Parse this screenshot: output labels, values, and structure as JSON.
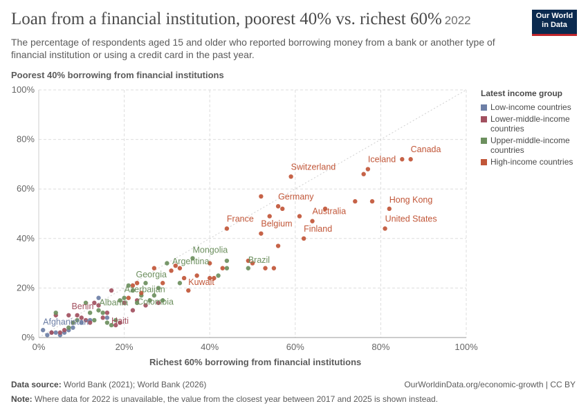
{
  "header": {
    "title": "Loan from a financial institution, poorest 40% vs. richest 60%",
    "year": "2022",
    "subtitle": "The percentage of respondents aged 15 and older who reported borrowing money from a bank or another type of financial institution or using a credit card in the past year.",
    "logo_line1": "Our World",
    "logo_line2": "in Data"
  },
  "footer": {
    "source_label": "Data source:",
    "source_text": "World Bank (2021); World Bank (2026)",
    "url": "OurWorldinData.org/economic-growth | CC BY",
    "note_label": "Note:",
    "note_text": "Where data for 2022 is unavailable, the value from the closest year between 2017 and 2025 is shown instead."
  },
  "chart_data": {
    "type": "scatter",
    "ylabel": "Poorest 40% borrowing from financial institutions",
    "xlabel": "Richest 60% borrowing from financial institutions",
    "xlim": [
      0,
      100
    ],
    "ylim": [
      0,
      100
    ],
    "xticks": [
      "0%",
      "20%",
      "40%",
      "60%",
      "80%",
      "100%"
    ],
    "yticks": [
      "0%",
      "20%",
      "40%",
      "60%",
      "80%",
      "100%"
    ],
    "grid": true,
    "legend": {
      "title": "Latest income group",
      "position": "right",
      "items": [
        {
          "name": "Low-income countries",
          "color": "#6d7fa6"
        },
        {
          "name": "Lower-middle-income countries",
          "color": "#a2505f"
        },
        {
          "name": "Upper-middle-income countries",
          "color": "#6c8f5e"
        },
        {
          "name": "High-income countries",
          "color": "#c15638"
        }
      ]
    },
    "series": [
      {
        "name": "Low-income countries",
        "color": "#6d7fa6",
        "points": [
          [
            1,
            3
          ],
          [
            2,
            1
          ],
          [
            3,
            2
          ],
          [
            4,
            2
          ],
          [
            5,
            1
          ],
          [
            6,
            2
          ],
          [
            7,
            3
          ],
          [
            8,
            4
          ],
          [
            10,
            6
          ],
          [
            12,
            7
          ],
          [
            14,
            16
          ],
          [
            16,
            8
          ]
        ]
      },
      {
        "name": "Lower-middle-income countries",
        "color": "#a2505f",
        "points": [
          [
            3,
            2
          ],
          [
            4,
            9
          ],
          [
            5,
            2
          ],
          [
            6,
            3
          ],
          [
            7,
            9
          ],
          [
            8,
            6
          ],
          [
            9,
            9
          ],
          [
            10,
            8
          ],
          [
            11,
            7
          ],
          [
            12,
            6
          ],
          [
            13,
            14
          ],
          [
            14,
            13
          ],
          [
            15,
            8
          ],
          [
            16,
            10
          ],
          [
            17,
            19
          ],
          [
            18,
            5
          ],
          [
            19,
            6
          ],
          [
            20,
            14
          ],
          [
            22,
            11
          ],
          [
            23,
            15
          ],
          [
            25,
            13
          ],
          [
            28,
            14
          ]
        ]
      },
      {
        "name": "Upper-middle-income countries",
        "color": "#6c8f5e",
        "points": [
          [
            4,
            10
          ],
          [
            7,
            4
          ],
          [
            8,
            6
          ],
          [
            9,
            7
          ],
          [
            11,
            14
          ],
          [
            12,
            10
          ],
          [
            13,
            7
          ],
          [
            14,
            11
          ],
          [
            15,
            10
          ],
          [
            16,
            6
          ],
          [
            17,
            5
          ],
          [
            18,
            7
          ],
          [
            19,
            15
          ],
          [
            20,
            16
          ],
          [
            21,
            21
          ],
          [
            22,
            19
          ],
          [
            23,
            14
          ],
          [
            24,
            17
          ],
          [
            25,
            22
          ],
          [
            26,
            15
          ],
          [
            27,
            17
          ],
          [
            28,
            20
          ],
          [
            29,
            15
          ],
          [
            30,
            30
          ],
          [
            33,
            22
          ],
          [
            36,
            32
          ],
          [
            42,
            25
          ],
          [
            44,
            28
          ],
          [
            44,
            31
          ],
          [
            49,
            28
          ]
        ]
      },
      {
        "name": "High-income countries",
        "color": "#c15638",
        "points": [
          [
            21,
            16
          ],
          [
            22,
            21
          ],
          [
            23,
            22
          ],
          [
            24,
            18
          ],
          [
            27,
            28
          ],
          [
            29,
            22
          ],
          [
            31,
            27
          ],
          [
            32,
            29
          ],
          [
            33,
            28
          ],
          [
            34,
            24
          ],
          [
            35,
            19
          ],
          [
            37,
            25
          ],
          [
            40,
            24
          ],
          [
            40,
            30
          ],
          [
            41,
            24
          ],
          [
            43,
            28
          ],
          [
            44,
            44
          ],
          [
            49,
            31
          ],
          [
            50,
            30
          ],
          [
            52,
            42
          ],
          [
            52,
            57
          ],
          [
            53,
            28
          ],
          [
            54,
            49
          ],
          [
            55,
            28
          ],
          [
            56,
            37
          ],
          [
            56,
            53
          ],
          [
            57,
            52
          ],
          [
            59,
            65
          ],
          [
            61,
            49
          ],
          [
            62,
            40
          ],
          [
            64,
            47
          ],
          [
            67,
            52
          ],
          [
            74,
            55
          ],
          [
            76,
            66
          ],
          [
            77,
            68
          ],
          [
            78,
            55
          ],
          [
            81,
            44
          ],
          [
            82,
            52
          ],
          [
            85,
            72
          ],
          [
            87,
            72
          ]
        ]
      }
    ],
    "labels": [
      {
        "text": "Canada",
        "x": 87,
        "y": 72,
        "series": "High-income countries"
      },
      {
        "text": "Iceland",
        "x": 77,
        "y": 68,
        "series": "High-income countries"
      },
      {
        "text": "Switzerland",
        "x": 59,
        "y": 65,
        "series": "High-income countries"
      },
      {
        "text": "Germany",
        "x": 56,
        "y": 53,
        "series": "High-income countries"
      },
      {
        "text": "Hong Kong",
        "x": 82,
        "y": 52,
        "series": "High-income countries"
      },
      {
        "text": "Australia",
        "x": 64,
        "y": 47,
        "series": "High-income countries"
      },
      {
        "text": "France",
        "x": 44,
        "y": 44,
        "series": "High-income countries"
      },
      {
        "text": "United States",
        "x": 81,
        "y": 44,
        "series": "High-income countries"
      },
      {
        "text": "Belgium",
        "x": 52,
        "y": 42,
        "series": "High-income countries"
      },
      {
        "text": "Finland",
        "x": 62,
        "y": 40,
        "series": "High-income countries"
      },
      {
        "text": "Mongolia",
        "x": 36,
        "y": 32,
        "series": "Upper-middle-income countries"
      },
      {
        "text": "Brazil",
        "x": 49,
        "y": 28,
        "series": "Upper-middle-income countries"
      },
      {
        "text": "Argentina",
        "x": 33,
        "y": 28,
        "series": "Upper-middle-income countries"
      },
      {
        "text": "Georgia",
        "x": 25,
        "y": 22,
        "series": "Upper-middle-income countries"
      },
      {
        "text": "Kuwait",
        "x": 35,
        "y": 19,
        "series": "High-income countries"
      },
      {
        "text": "Azerbaijan",
        "x": 20,
        "y": 16,
        "series": "Upper-middle-income countries"
      },
      {
        "text": "Albania",
        "x": 14,
        "y": 11,
        "series": "Upper-middle-income countries"
      },
      {
        "text": "Colombia",
        "x": 23,
        "y": 11,
        "series": "Upper-middle-income countries"
      },
      {
        "text": "Benin",
        "x": 8,
        "y": 9,
        "series": "Lower-middle-income countries"
      },
      {
        "text": "Haiti",
        "x": 17,
        "y": 5,
        "series": "Lower-middle-income countries"
      },
      {
        "text": "Afghanistan",
        "x": 1,
        "y": 3,
        "series": "Low-income countries"
      }
    ]
  }
}
